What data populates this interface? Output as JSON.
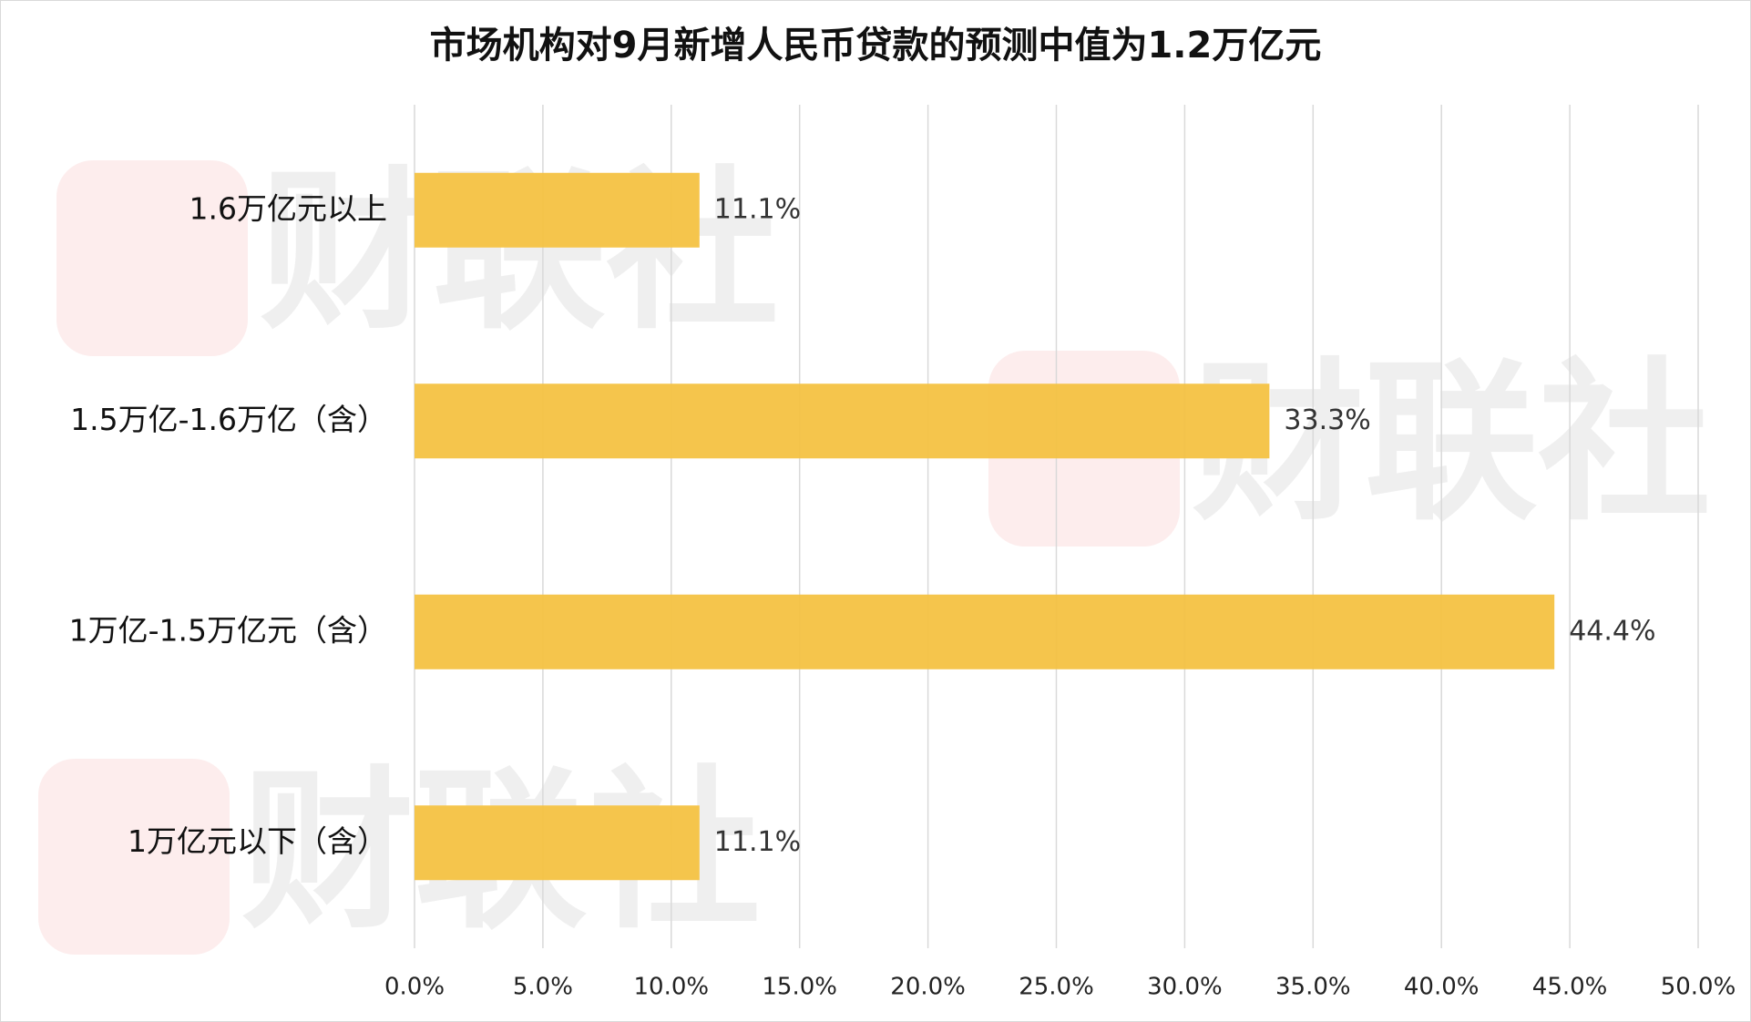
{
  "chart_data": {
    "type": "barh",
    "title": "市场机构对9月新增人民币贷款的预测中值为1.2万亿元",
    "watermark": "财联社",
    "categories": [
      "1.6万亿元以上",
      "1.5万亿-1.6万亿（含）",
      "1万亿-1.5万亿元（含）",
      "1万亿元以下（含）"
    ],
    "values": [
      11.1,
      33.3,
      44.4,
      11.1
    ],
    "value_labels": [
      "11.1%",
      "33.3%",
      "44.4%",
      "11.1%"
    ],
    "color": "#f4c242",
    "xlim": [
      0,
      50
    ],
    "xticks": [
      {
        "value": 0,
        "label": "0.0%"
      },
      {
        "value": 5,
        "label": "5.0%"
      },
      {
        "value": 10,
        "label": "10.0%"
      },
      {
        "value": 15,
        "label": "15.0%"
      },
      {
        "value": 20,
        "label": "20.0%"
      },
      {
        "value": 25,
        "label": "25.0%"
      },
      {
        "value": 30,
        "label": "30.0%"
      },
      {
        "value": 35,
        "label": "35.0%"
      },
      {
        "value": 40,
        "label": "40.0%"
      },
      {
        "value": 45,
        "label": "45.0%"
      },
      {
        "value": 50,
        "label": "50.0%"
      }
    ],
    "grid": true
  }
}
